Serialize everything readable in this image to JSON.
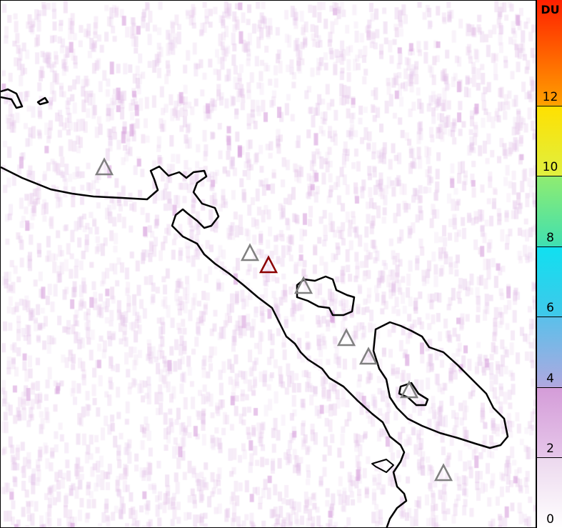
{
  "map": {
    "volcano_markers": [
      {
        "status": "inactive",
        "color": "#808080"
      },
      {
        "status": "inactive",
        "color": "#808080"
      },
      {
        "status": "active",
        "color": "#8b0000"
      },
      {
        "status": "inactive",
        "color": "#808080"
      },
      {
        "status": "inactive",
        "color": "#808080"
      },
      {
        "status": "inactive",
        "color": "#808080"
      },
      {
        "status": "inactive",
        "color": "#808080"
      },
      {
        "status": "inactive",
        "color": "#808080"
      }
    ],
    "coastline_color": "#000000"
  },
  "colorbar": {
    "unit": "DU",
    "range": [
      0,
      15
    ],
    "ticks": [
      "0",
      "2",
      "4",
      "6",
      "8",
      "10",
      "12"
    ],
    "stops": [
      {
        "value": 0,
        "color": "#ffffff"
      },
      {
        "value": 2,
        "color": "#ecd8ee"
      },
      {
        "value": 2.01,
        "color": "#e6c6ea"
      },
      {
        "value": 4,
        "color": "#d49cd8"
      },
      {
        "value": 4.01,
        "color": "#b0a8e0"
      },
      {
        "value": 6,
        "color": "#5ac0ea"
      },
      {
        "value": 6.01,
        "color": "#40c8ea"
      },
      {
        "value": 8,
        "color": "#10e0f0"
      },
      {
        "value": 8.01,
        "color": "#40e0b0"
      },
      {
        "value": 10,
        "color": "#90ec70"
      },
      {
        "value": 10.01,
        "color": "#e0f040"
      },
      {
        "value": 12,
        "color": "#ffe000"
      },
      {
        "value": 12.01,
        "color": "#ffa000"
      },
      {
        "value": 15,
        "color": "#ff2000"
      }
    ]
  }
}
